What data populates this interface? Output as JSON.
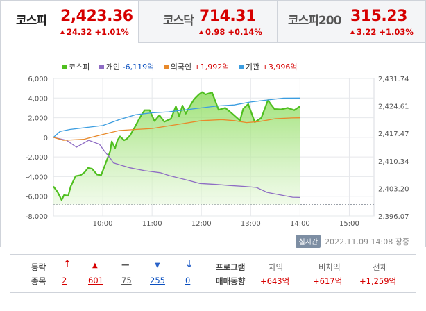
{
  "tabs": [
    {
      "name": "코스피",
      "price": "2,423.36",
      "change": "24.32",
      "rate": "+1.01%",
      "active": true
    },
    {
      "name": "코스닥",
      "price": "714.31",
      "change": "0.98",
      "rate": "+0.14%",
      "active": false
    },
    {
      "name": "코스피200",
      "price": "315.23",
      "change": "3.22",
      "rate": "+1.03%",
      "active": false
    }
  ],
  "legend": [
    {
      "label": "코스피",
      "value": "",
      "value_color": "none",
      "color": "#4fbf1f"
    },
    {
      "label": "개인",
      "value": "-6,119억",
      "value_color": "blue",
      "color": "#8e6cc4"
    },
    {
      "label": "외국인",
      "value": "+1,992억",
      "value_color": "red",
      "color": "#e8892a"
    },
    {
      "label": "기관",
      "value": "+3,996억",
      "value_color": "red",
      "color": "#3b9de0"
    }
  ],
  "chart_data": {
    "type": "line",
    "left_axis_ticks": [
      "6,000",
      "4,000",
      "2,000",
      "0",
      "-2,000",
      "-4,000",
      "-6,000",
      "-8,000"
    ],
    "left_axis_range": [
      -8000,
      6000
    ],
    "right_axis_ticks": [
      "2,431.74",
      "2,424.61",
      "2,417.47",
      "2,410.34",
      "2,403.20",
      "2,396.07"
    ],
    "right_axis_range": [
      2396.07,
      2431.74
    ],
    "x_ticks": [
      "10:00",
      "11:00",
      "12:00",
      "13:00",
      "14:00",
      "15:00"
    ],
    "x_range_minutes": [
      540,
      930
    ],
    "prev_close": 2399.04,
    "grid": true,
    "legend_position": "top",
    "series": [
      {
        "name": "코스피",
        "axis": "right",
        "area": true,
        "color": "#4fbf1f",
        "x": [
          540,
          545,
          550,
          553,
          558,
          561,
          567,
          573,
          578,
          582,
          587,
          593,
          598,
          603,
          609,
          611,
          615,
          618,
          621,
          626,
          629,
          633,
          639,
          645,
          651,
          657,
          663,
          669,
          675,
          683,
          689,
          693,
          697,
          701,
          705,
          711,
          717,
          721,
          725,
          733,
          741,
          749,
          757,
          767,
          771,
          777,
          785,
          793,
          801,
          805,
          809,
          817,
          825,
          833,
          840
        ],
        "y": [
          2403.7,
          2402.3,
          2400.2,
          2401.5,
          2401.3,
          2403.7,
          2406.4,
          2406.6,
          2407.4,
          2408.5,
          2408.3,
          2406.8,
          2406.6,
          2409.4,
          2412.8,
          2415.4,
          2413.6,
          2415.7,
          2416.7,
          2415.7,
          2416.0,
          2416.9,
          2419.1,
          2421.5,
          2423.5,
          2423.5,
          2420.7,
          2422.2,
          2420.5,
          2421.3,
          2424.5,
          2421.9,
          2424.7,
          2422.6,
          2424.2,
          2426.3,
          2427.6,
          2428.2,
          2427.6,
          2428.1,
          2423.6,
          2424.1,
          2422.7,
          2420.8,
          2423.9,
          2425.1,
          2420.4,
          2421.5,
          2426.1,
          2424.9,
          2423.8,
          2423.7,
          2424.1,
          2423.5,
          2424.5
        ]
      },
      {
        "name": "개인",
        "axis": "left",
        "color": "#8e6cc4",
        "x": [
          540,
          556,
          568,
          583,
          596,
          603,
          609,
          613,
          621,
          633,
          651,
          670,
          681,
          705,
          718,
          738,
          754,
          773,
          787,
          800,
          831,
          840
        ],
        "y": [
          0,
          -300,
          -1000,
          -300,
          -700,
          -1500,
          -2100,
          -2600,
          -2800,
          -3100,
          -3400,
          -3600,
          -3900,
          -4400,
          -4700,
          -4800,
          -4900,
          -5000,
          -5100,
          -5600,
          -6100,
          -6119
        ]
      },
      {
        "name": "외국인",
        "axis": "left",
        "color": "#e8892a",
        "x": [
          540,
          552,
          577,
          600,
          620,
          640,
          660,
          690,
          720,
          745,
          760,
          775,
          790,
          810,
          830,
          840
        ],
        "y": [
          0,
          -300,
          -200,
          300,
          700,
          800,
          900,
          1300,
          1700,
          1800,
          1700,
          1500,
          1600,
          1900,
          1980,
          1992
        ]
      },
      {
        "name": "기관",
        "axis": "left",
        "color": "#3b9de0",
        "x": [
          540,
          548,
          560,
          580,
          600,
          620,
          640,
          660,
          680,
          700,
          720,
          740,
          760,
          780,
          800,
          820,
          840
        ],
        "y": [
          0,
          600,
          800,
          1000,
          1200,
          1800,
          2300,
          2500,
          2600,
          2800,
          3000,
          3200,
          3300,
          3600,
          3800,
          3990,
          3996
        ]
      }
    ]
  },
  "status": {
    "realtime": "실시간",
    "timestamp": "2022.11.09 14:08",
    "market_state": "장중"
  },
  "breadth": {
    "label_line1": "등락",
    "label_line2": "종목",
    "items": [
      {
        "icon": "upper-limit-icon",
        "glyph": "↑",
        "value": "2"
      },
      {
        "icon": "rise-icon",
        "glyph": "▲",
        "value": "601"
      },
      {
        "icon": "flat-icon",
        "glyph": "—",
        "value": "75"
      },
      {
        "icon": "fall-icon",
        "glyph": "▼",
        "value": "255"
      },
      {
        "icon": "lower-limit-icon",
        "glyph": "↓",
        "value": "0"
      }
    ]
  },
  "program": {
    "label_line1": "프로그램",
    "label_line2": "매매동향",
    "headers": [
      "차익",
      "비차익",
      "전체"
    ],
    "values": [
      "+643억",
      "+617억",
      "+1,259억"
    ]
  }
}
